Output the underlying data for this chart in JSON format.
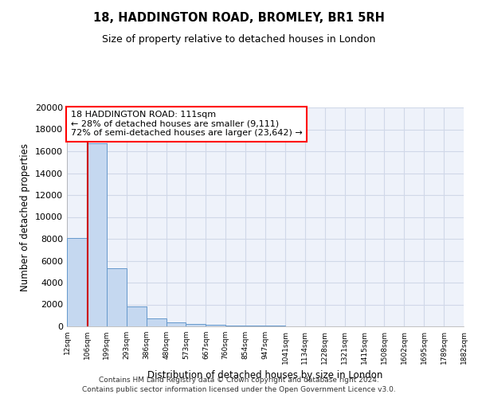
{
  "title": "18, HADDINGTON ROAD, BROMLEY, BR1 5RH",
  "subtitle": "Size of property relative to detached houses in London",
  "xlabel": "Distribution of detached houses by size in London",
  "ylabel": "Number of detached properties",
  "bar_color": "#c5d8f0",
  "bar_edge_color": "#6699cc",
  "annotation_title": "18 HADDINGTON ROAD: 111sqm",
  "annotation_line1": "← 28% of detached houses are smaller (9,111)",
  "annotation_line2": "72% of semi-detached houses are larger (23,642) →",
  "property_size": 111,
  "bins": [
    12,
    106,
    199,
    293,
    386,
    480,
    573,
    667,
    760,
    854,
    947,
    1041,
    1134,
    1228,
    1321,
    1415,
    1508,
    1602,
    1695,
    1789,
    1882
  ],
  "bin_labels": [
    "12sqm",
    "106sqm",
    "199sqm",
    "293sqm",
    "386sqm",
    "480sqm",
    "573sqm",
    "667sqm",
    "760sqm",
    "854sqm",
    "947sqm",
    "1041sqm",
    "1134sqm",
    "1228sqm",
    "1321sqm",
    "1415sqm",
    "1508sqm",
    "1602sqm",
    "1695sqm",
    "1789sqm",
    "1882sqm"
  ],
  "values": [
    8100,
    16700,
    5300,
    1800,
    700,
    400,
    250,
    130,
    80,
    55,
    40,
    30,
    20,
    15,
    12,
    10,
    8,
    6,
    5,
    4
  ],
  "ylim": [
    0,
    20000
  ],
  "yticks": [
    0,
    2000,
    4000,
    6000,
    8000,
    10000,
    12000,
    14000,
    16000,
    18000,
    20000
  ],
  "red_line_color": "#cc0000",
  "background_color": "#eef2fa",
  "grid_color": "#d0d8e8",
  "footer_line1": "Contains HM Land Registry data © Crown copyright and database right 2024.",
  "footer_line2": "Contains public sector information licensed under the Open Government Licence v3.0."
}
